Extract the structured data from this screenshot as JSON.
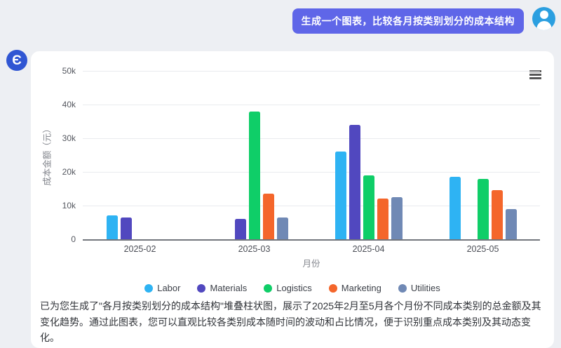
{
  "chat": {
    "user_message": "生成一个图表，比较各月按类别划分的成本结构"
  },
  "assistant": {
    "logo_glyph": "Є",
    "summary": "已为您生成了\"各月按类别划分的成本结构\"堆叠柱状图，展示了2025年2月至5月各个月份不同成本类别的总金额及其变化趋势。通过此图表，您可以直观比较各类别成本随时间的波动和占比情况，便于识别重点成本类别及其动态变化。"
  },
  "chart_data": {
    "type": "bar",
    "title": "",
    "categories": [
      "2025-02",
      "2025-03",
      "2025-04",
      "2025-05"
    ],
    "series": [
      {
        "name": "Labor",
        "color": "#2eb3f3",
        "values": [
          7000,
          null,
          26000,
          18500
        ]
      },
      {
        "name": "Materials",
        "color": "#5148bf",
        "values": [
          6500,
          6000,
          34000,
          null
        ]
      },
      {
        "name": "Logistics",
        "color": "#0fce68",
        "values": [
          null,
          38000,
          19000,
          18000
        ]
      },
      {
        "name": "Marketing",
        "color": "#f4662b",
        "values": [
          null,
          13500,
          12000,
          14500
        ]
      },
      {
        "name": "Utilities",
        "color": "#7089b5",
        "values": [
          null,
          6500,
          12500,
          9000
        ]
      }
    ],
    "xlabel": "月份",
    "ylabel": "成本金额（元）",
    "ylim": [
      0,
      50000
    ],
    "yticks": [
      0,
      10000,
      20000,
      30000,
      40000,
      50000
    ],
    "ytick_labels": [
      "0",
      "10k",
      "20k",
      "30k",
      "40k",
      "50k"
    ],
    "grid": true,
    "legend_position": "bottom"
  },
  "colors": {
    "user_bubble": "#5f66e8",
    "user_avatar_bg": "#2b9fe0",
    "bot_logo_bg": "#3056d3",
    "page_bg": "#edeff3",
    "card_bg": "#ffffff"
  }
}
